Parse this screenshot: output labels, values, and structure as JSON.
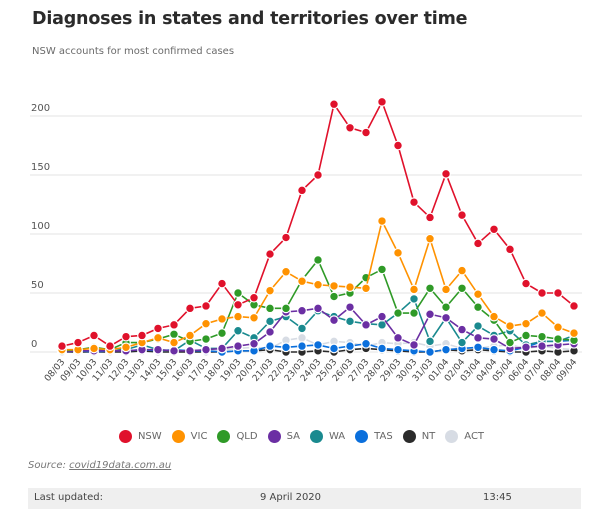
{
  "header": {
    "title": "Diagnoses in states and territories over time",
    "subtitle": "NSW accounts for most confirmed cases"
  },
  "chart_data": {
    "type": "line",
    "title": "Diagnoses in states and territories over time",
    "xlabel": "",
    "ylabel": "",
    "ylim": [
      0,
      200
    ],
    "yticks": [
      0,
      50,
      100,
      150,
      200
    ],
    "grid": true,
    "legend_position": "bottom",
    "x": [
      "08/03",
      "09/03",
      "10/03",
      "11/03",
      "12/03",
      "13/03",
      "14/03",
      "15/03",
      "16/03",
      "17/03",
      "18/03",
      "19/03",
      "20/03",
      "21/03",
      "22/03",
      "23/03",
      "24/03",
      "25/03",
      "26/03",
      "27/03",
      "28/03",
      "29/03",
      "30/03",
      "31/03",
      "01/04",
      "02/04",
      "03/04",
      "04/04",
      "05/04",
      "06/04",
      "07/04",
      "08/04",
      "09/04"
    ],
    "series": [
      {
        "name": "NSW",
        "color": "#e0112b",
        "values": [
          5,
          8,
          14,
          5,
          13,
          14,
          20,
          23,
          37,
          39,
          58,
          40,
          46,
          83,
          97,
          137,
          150,
          210,
          190,
          186,
          212,
          175,
          127,
          114,
          151,
          116,
          92,
          104,
          87,
          58,
          50,
          50,
          39
        ]
      },
      {
        "name": "VIC",
        "color": "#ff9200",
        "values": [
          2,
          2,
          3,
          2,
          4,
          8,
          12,
          8,
          14,
          24,
          28,
          30,
          29,
          52,
          68,
          60,
          57,
          56,
          55,
          54,
          111,
          84,
          53,
          96,
          53,
          69,
          49,
          30,
          22,
          24,
          33,
          21,
          16
        ]
      },
      {
        "name": "QLD",
        "color": "#2f9a27",
        "values": [
          1,
          2,
          4,
          2,
          8,
          8,
          11,
          15,
          9,
          11,
          16,
          50,
          40,
          37,
          37,
          61,
          78,
          47,
          50,
          63,
          70,
          33,
          33,
          54,
          38,
          54,
          38,
          27,
          8,
          14,
          13,
          11,
          10
        ]
      },
      {
        "name": "SA",
        "color": "#6b2fa3",
        "values": [
          0,
          1,
          1,
          1,
          1,
          2,
          2,
          1,
          1,
          2,
          3,
          5,
          7,
          17,
          34,
          35,
          37,
          27,
          38,
          23,
          30,
          12,
          6,
          32,
          29,
          19,
          12,
          11,
          3,
          4,
          5,
          6,
          7
        ]
      },
      {
        "name": "WA",
        "color": "#1a8a8f",
        "values": [
          0,
          1,
          1,
          3,
          2,
          6,
          2,
          1,
          10,
          3,
          3,
          18,
          12,
          26,
          30,
          20,
          35,
          30,
          26,
          24,
          23,
          33,
          45,
          9,
          29,
          8,
          22,
          14,
          18,
          6,
          9,
          9,
          14
        ]
      },
      {
        "name": "TAS",
        "color": "#0a6fdc",
        "values": [
          0,
          1,
          0,
          1,
          1,
          2,
          1,
          2,
          1,
          1,
          0,
          1,
          1,
          5,
          4,
          5,
          6,
          3,
          5,
          7,
          3,
          2,
          1,
          0,
          2,
          3,
          4,
          2,
          1,
          4,
          9,
          9,
          10
        ]
      },
      {
        "name": "NT",
        "color": "#2b2b2b",
        "values": [
          0,
          0,
          0,
          0,
          0,
          1,
          0,
          0,
          0,
          0,
          0,
          1,
          1,
          2,
          0,
          0,
          1,
          0,
          2,
          3,
          2,
          1,
          0,
          0,
          2,
          1,
          2,
          1,
          0,
          0,
          1,
          0,
          1
        ]
      },
      {
        "name": "ACT",
        "color": "#d7dce4",
        "values": [
          0,
          0,
          1,
          0,
          1,
          0,
          1,
          0,
          2,
          1,
          2,
          3,
          4,
          3,
          10,
          12,
          6,
          9,
          8,
          5,
          8,
          7,
          8,
          5,
          7,
          3,
          3,
          5,
          6,
          3,
          5,
          3,
          2
        ]
      }
    ]
  },
  "source": {
    "label": "Source:",
    "link": "covid19data.com.au"
  },
  "footer": {
    "label": "Last updated:",
    "date": "9 April 2020",
    "time": "13:45"
  }
}
